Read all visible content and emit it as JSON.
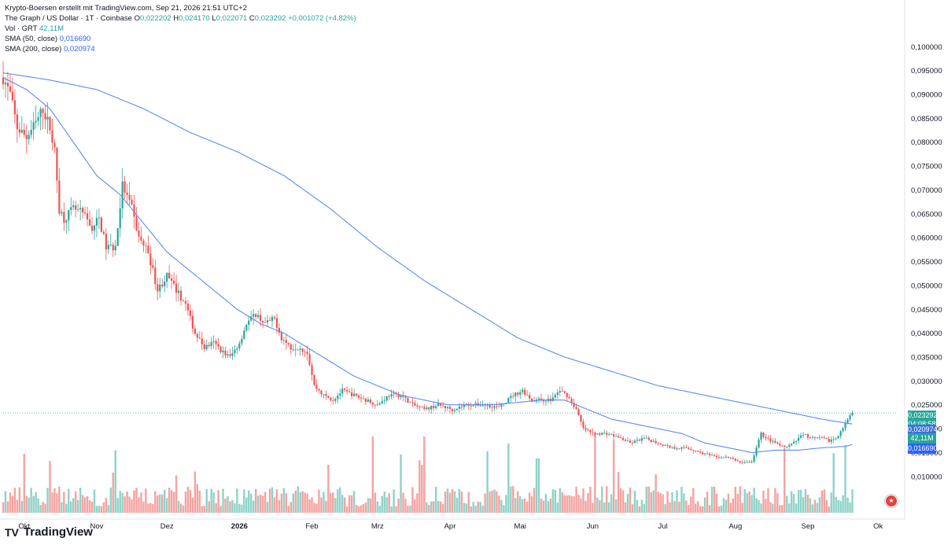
{
  "header": {
    "publisher": "Krypto-Boersen erstellt mit TradingView.com, Sep 21, 2026 21:51 UTC+2",
    "symbol": "The Graph / US Dollar · 1T · Coinbase",
    "ohlc_o_label": "O",
    "ohlc_o": "0,022202",
    "ohlc_h_label": "H",
    "ohlc_h": "0,024170",
    "ohlc_l_label": "L",
    "ohlc_l": "0,022071",
    "ohlc_c_label": "C",
    "ohlc_c": "0,023292",
    "ohlc_change": "+0,001072 (+4,82%)",
    "vol_label": "Vol · GRT",
    "vol_value": "42,11M",
    "sma50_label": "SMA (50, close)",
    "sma50_value": "0,016690",
    "sma200_label": "SMA (200, close)",
    "sma200_value": "0,020974"
  },
  "price_tags": {
    "last": "0,023292",
    "countdown": "04:08:58",
    "sma200": "0,020974",
    "volume": "42,11M",
    "sma50": "0,016690"
  },
  "brand": {
    "logo": "TV",
    "name": "TradingView"
  },
  "colors": {
    "up": "#26a69a",
    "down": "#ef5350",
    "up_vol": "#8fd2c9",
    "down_vol": "#f4a3a0",
    "sma": "#5b8def",
    "sma50_tag": "#2962ff"
  },
  "chart_data": {
    "type": "candlestick",
    "title": "The Graph / US Dollar · 1T · Coinbase",
    "y_axis_ticks": [
      "0,100000",
      "0,095000",
      "0,090000",
      "0,085000",
      "0,080000",
      "0,075000",
      "0,070000",
      "0,065000",
      "0,060000",
      "0,055000",
      "0,050000",
      "0,045000",
      "0,040000",
      "0,035000",
      "0,030000",
      "0,025000",
      "0,020000",
      "0,015000",
      "0,010000"
    ],
    "y_tick_values": [
      0.1,
      0.095,
      0.09,
      0.085,
      0.08,
      0.075,
      0.07,
      0.065,
      0.06,
      0.055,
      0.05,
      0.045,
      0.04,
      0.035,
      0.03,
      0.025,
      0.02,
      0.015,
      0.01
    ],
    "x_axis_ticks": [
      "Okt",
      "Nov",
      "Dez",
      "2026",
      "Feb",
      "Mrz",
      "Apr",
      "Mai",
      "Jun",
      "Jul",
      "Aug",
      "Sep",
      "Ok"
    ],
    "x_tick_days": [
      9,
      40,
      70,
      101,
      132,
      160,
      191,
      221,
      252,
      282,
      313,
      344,
      374
    ],
    "x_domain_days": [
      0,
      382
    ],
    "y_domain": [
      0.0024,
      0.1035
    ],
    "last_close": 0.023292,
    "series": [
      {
        "name": "GRT/USD",
        "anchors": [
          [
            0,
            0.0935
          ],
          [
            3,
            0.09
          ],
          [
            6,
            0.083
          ],
          [
            10,
            0.081
          ],
          [
            14,
            0.084
          ],
          [
            17,
            0.087
          ],
          [
            20,
            0.083
          ],
          [
            22,
            0.078
          ],
          [
            24,
            0.066
          ],
          [
            26,
            0.064
          ],
          [
            30,
            0.066
          ],
          [
            34,
            0.065
          ],
          [
            38,
            0.062
          ],
          [
            41,
            0.064
          ],
          [
            44,
            0.058
          ],
          [
            48,
            0.058
          ],
          [
            51,
            0.071
          ],
          [
            55,
            0.066
          ],
          [
            58,
            0.06
          ],
          [
            62,
            0.057
          ],
          [
            66,
            0.049
          ],
          [
            70,
            0.052
          ],
          [
            74,
            0.049
          ],
          [
            78,
            0.046
          ],
          [
            82,
            0.04
          ],
          [
            86,
            0.037
          ],
          [
            90,
            0.038
          ],
          [
            94,
            0.036
          ],
          [
            97,
            0.035
          ],
          [
            101,
            0.038
          ],
          [
            104,
            0.042
          ],
          [
            108,
            0.044
          ],
          [
            112,
            0.042
          ],
          [
            116,
            0.043
          ],
          [
            119,
            0.039
          ],
          [
            123,
            0.037
          ],
          [
            127,
            0.037
          ],
          [
            130,
            0.036
          ],
          [
            133,
            0.029
          ],
          [
            137,
            0.027
          ],
          [
            141,
            0.026
          ],
          [
            145,
            0.028
          ],
          [
            150,
            0.027
          ],
          [
            155,
            0.026
          ],
          [
            160,
            0.025
          ],
          [
            165,
            0.027
          ],
          [
            170,
            0.027
          ],
          [
            175,
            0.025
          ],
          [
            180,
            0.024
          ],
          [
            186,
            0.025
          ],
          [
            192,
            0.024
          ],
          [
            198,
            0.025
          ],
          [
            205,
            0.025
          ],
          [
            212,
            0.0245
          ],
          [
            218,
            0.027
          ],
          [
            222,
            0.028
          ],
          [
            226,
            0.026
          ],
          [
            230,
            0.026
          ],
          [
            234,
            0.026
          ],
          [
            238,
            0.028
          ],
          [
            241,
            0.027
          ],
          [
            245,
            0.024
          ],
          [
            248,
            0.02
          ],
          [
            252,
            0.019
          ],
          [
            258,
            0.019
          ],
          [
            264,
            0.018
          ],
          [
            268,
            0.017
          ],
          [
            274,
            0.018
          ],
          [
            280,
            0.017
          ],
          [
            286,
            0.016
          ],
          [
            292,
            0.016
          ],
          [
            298,
            0.015
          ],
          [
            305,
            0.014
          ],
          [
            310,
            0.014
          ],
          [
            315,
            0.013
          ],
          [
            320,
            0.013
          ],
          [
            324,
            0.019
          ],
          [
            326,
            0.018
          ],
          [
            330,
            0.017
          ],
          [
            334,
            0.016
          ],
          [
            338,
            0.017
          ],
          [
            342,
            0.019
          ],
          [
            345,
            0.018
          ],
          [
            350,
            0.018
          ],
          [
            353,
            0.0175
          ],
          [
            356,
            0.018
          ],
          [
            360,
            0.021
          ],
          [
            363,
            0.023292
          ]
        ]
      },
      {
        "name": "SMA (50, close)",
        "anchors": [
          [
            0,
            0.0935
          ],
          [
            10,
            0.091
          ],
          [
            20,
            0.087
          ],
          [
            30,
            0.08
          ],
          [
            40,
            0.073
          ],
          [
            50,
            0.069
          ],
          [
            60,
            0.063
          ],
          [
            70,
            0.057
          ],
          [
            80,
            0.053
          ],
          [
            90,
            0.049
          ],
          [
            100,
            0.045
          ],
          [
            110,
            0.042
          ],
          [
            120,
            0.04
          ],
          [
            130,
            0.037
          ],
          [
            140,
            0.034
          ],
          [
            150,
            0.031
          ],
          [
            160,
            0.029
          ],
          [
            170,
            0.027
          ],
          [
            180,
            0.026
          ],
          [
            190,
            0.025
          ],
          [
            200,
            0.025
          ],
          [
            210,
            0.025
          ],
          [
            220,
            0.0255
          ],
          [
            230,
            0.026
          ],
          [
            240,
            0.026
          ],
          [
            250,
            0.024
          ],
          [
            260,
            0.022
          ],
          [
            270,
            0.021
          ],
          [
            280,
            0.02
          ],
          [
            290,
            0.019
          ],
          [
            300,
            0.017
          ],
          [
            310,
            0.016
          ],
          [
            320,
            0.015
          ],
          [
            330,
            0.0155
          ],
          [
            340,
            0.0155
          ],
          [
            350,
            0.016
          ],
          [
            360,
            0.0163
          ],
          [
            363,
            0.01669
          ]
        ]
      },
      {
        "name": "SMA (200, close)",
        "anchors": [
          [
            0,
            0.0945
          ],
          [
            20,
            0.093
          ],
          [
            40,
            0.091
          ],
          [
            60,
            0.087
          ],
          [
            80,
            0.082
          ],
          [
            100,
            0.078
          ],
          [
            120,
            0.073
          ],
          [
            140,
            0.066
          ],
          [
            160,
            0.058
          ],
          [
            180,
            0.051
          ],
          [
            200,
            0.045
          ],
          [
            220,
            0.039
          ],
          [
            240,
            0.035
          ],
          [
            260,
            0.032
          ],
          [
            280,
            0.029
          ],
          [
            300,
            0.027
          ],
          [
            320,
            0.025
          ],
          [
            340,
            0.023
          ],
          [
            350,
            0.022
          ],
          [
            363,
            0.020974
          ]
        ]
      }
    ]
  }
}
